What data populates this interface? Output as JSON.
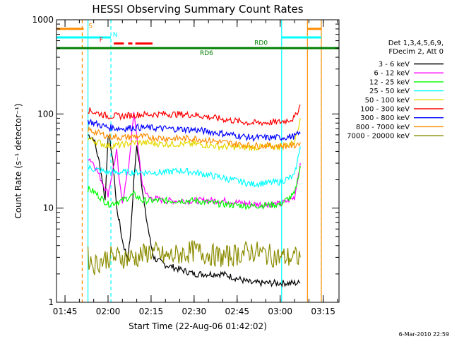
{
  "chart_data": {
    "type": "line",
    "title": "HESSI Observing Summary Count Rates",
    "xlabel": "Start Time (22-Aug-06 01:42:02)",
    "ylabel": "Count Rate (s⁻¹ detector⁻¹)",
    "y_scale": "log",
    "ylim": [
      1,
      1000
    ],
    "xlim": [
      "01:42:02",
      "03:20:30"
    ],
    "x_tick_labels": [
      "01:45",
      "02:00",
      "02:15",
      "02:30",
      "02:45",
      "03:00",
      "03:15"
    ],
    "y_tick_labels": [
      "1",
      "10",
      "100",
      "1000"
    ],
    "legend_header": [
      "Det 1,3,4,5,6,9,",
      "FDecim 2, Att 0"
    ],
    "legend_placement": "right",
    "date_stamp": "6-Mar-2010 22:59",
    "series": [
      {
        "name": "3 - 6 keV",
        "color": "#000000",
        "points": [
          [
            "01:53:00",
            60
          ],
          [
            "01:55:00",
            55
          ],
          [
            "01:57:00",
            30
          ],
          [
            "01:58:00",
            20
          ],
          [
            "01:59:00",
            12
          ],
          [
            "02:00:00",
            60
          ],
          [
            "02:01:00",
            45
          ],
          [
            "02:02:00",
            25
          ],
          [
            "02:03:00",
            10
          ],
          [
            "02:04:00",
            7
          ],
          [
            "02:05:00",
            4.5
          ],
          [
            "02:06:00",
            3.5
          ],
          [
            "02:07:00",
            3
          ],
          [
            "02:08:00",
            6
          ],
          [
            "02:09:00",
            20
          ],
          [
            "02:10:00",
            45
          ],
          [
            "02:11:00",
            30
          ],
          [
            "02:12:00",
            15
          ],
          [
            "02:13:00",
            9
          ],
          [
            "02:14:00",
            6
          ],
          [
            "02:15:00",
            4
          ],
          [
            "02:16:00",
            3
          ],
          [
            "02:17:00",
            2.8
          ],
          [
            "02:20:00",
            2.5
          ],
          [
            "02:30:00",
            2
          ],
          [
            "02:40:00",
            2
          ],
          [
            "02:50:00",
            1.6
          ],
          [
            "03:00:00",
            1.6
          ],
          [
            "03:07:00",
            1.6
          ]
        ]
      },
      {
        "name": "6 - 12 keV",
        "color": "#ff00ff",
        "points": [
          [
            "01:53:00",
            35
          ],
          [
            "01:55:00",
            30
          ],
          [
            "01:57:00",
            22
          ],
          [
            "02:00:00",
            14
          ],
          [
            "02:01:00",
            20
          ],
          [
            "02:03:00",
            40
          ],
          [
            "02:04:00",
            18
          ],
          [
            "02:05:00",
            12
          ],
          [
            "02:07:00",
            25
          ],
          [
            "02:09:00",
            100
          ],
          [
            "02:10:00",
            60
          ],
          [
            "02:11:00",
            30
          ],
          [
            "02:12:00",
            18
          ],
          [
            "02:14:00",
            13
          ],
          [
            "02:20:00",
            12
          ],
          [
            "02:30:00",
            12
          ],
          [
            "02:40:00",
            12
          ],
          [
            "02:50:00",
            11
          ],
          [
            "03:00:00",
            11
          ],
          [
            "03:05:00",
            13
          ],
          [
            "03:07:00",
            30
          ]
        ]
      },
      {
        "name": "12 - 25 keV",
        "color": "#00ff00",
        "points": [
          [
            "01:53:00",
            16
          ],
          [
            "01:55:00",
            15
          ],
          [
            "02:00:00",
            11
          ],
          [
            "02:05:00",
            12
          ],
          [
            "02:09:00",
            14
          ],
          [
            "02:12:00",
            12
          ],
          [
            "02:20:00",
            12
          ],
          [
            "02:30:00",
            12
          ],
          [
            "02:40:00",
            11
          ],
          [
            "02:50:00",
            10.5
          ],
          [
            "03:00:00",
            11
          ],
          [
            "03:05:00",
            14
          ],
          [
            "03:07:00",
            28
          ]
        ]
      },
      {
        "name": "25 - 50 keV",
        "color": "#00ffff",
        "points": [
          [
            "01:53:00",
            27
          ],
          [
            "01:55:00",
            26
          ],
          [
            "02:00:00",
            24
          ],
          [
            "02:05:00",
            24
          ],
          [
            "02:10:00",
            24
          ],
          [
            "02:20:00",
            24
          ],
          [
            "02:25:00",
            25
          ],
          [
            "02:30:00",
            24
          ],
          [
            "02:40:00",
            21
          ],
          [
            "02:50:00",
            18
          ],
          [
            "03:00:00",
            19
          ],
          [
            "03:05:00",
            22
          ],
          [
            "03:07:00",
            45
          ]
        ]
      },
      {
        "name": "50 - 100 keV",
        "color": "#e6d800",
        "points": [
          [
            "01:53:00",
            55
          ],
          [
            "01:55:00",
            52
          ],
          [
            "02:00:00",
            46
          ],
          [
            "02:05:00",
            47
          ],
          [
            "02:10:00",
            50
          ],
          [
            "02:20:00",
            48
          ],
          [
            "02:30:00",
            48
          ],
          [
            "02:40:00",
            45
          ],
          [
            "02:50:00",
            44
          ],
          [
            "03:00:00",
            45
          ],
          [
            "03:05:00",
            50
          ],
          [
            "03:07:00",
            90
          ]
        ]
      },
      {
        "name": "100 - 300 keV",
        "color": "#ff0000",
        "points": [
          [
            "01:53:00",
            110
          ],
          [
            "01:55:00",
            105
          ],
          [
            "02:00:00",
            95
          ],
          [
            "02:05:00",
            95
          ],
          [
            "02:10:00",
            98
          ],
          [
            "02:20:00",
            100
          ],
          [
            "02:30:00",
            98
          ],
          [
            "02:40:00",
            88
          ],
          [
            "02:50:00",
            80
          ],
          [
            "03:00:00",
            82
          ],
          [
            "03:05:00",
            90
          ],
          [
            "03:07:00",
            125
          ]
        ]
      },
      {
        "name": "300 - 800 keV",
        "color": "#0000ff",
        "points": [
          [
            "01:53:00",
            85
          ],
          [
            "01:55:00",
            80
          ],
          [
            "02:00:00",
            72
          ],
          [
            "02:05:00",
            70
          ],
          [
            "02:10:00",
            72
          ],
          [
            "02:20:00",
            70
          ],
          [
            "02:30:00",
            68
          ],
          [
            "02:40:00",
            62
          ],
          [
            "02:50:00",
            56
          ],
          [
            "03:00:00",
            56
          ],
          [
            "03:05:00",
            58
          ],
          [
            "03:07:00",
            62
          ]
        ]
      },
      {
        "name": "800 - 7000 keV",
        "color": "#ff8c00",
        "points": [
          [
            "01:53:00",
            68
          ],
          [
            "01:55:00",
            65
          ],
          [
            "02:00:00",
            58
          ],
          [
            "02:05:00",
            56
          ],
          [
            "02:10:00",
            58
          ],
          [
            "02:20:00",
            55
          ],
          [
            "02:30:00",
            55
          ],
          [
            "02:40:00",
            50
          ],
          [
            "02:50:00",
            46
          ],
          [
            "03:00:00",
            46
          ],
          [
            "03:05:00",
            46
          ],
          [
            "03:07:00",
            50
          ]
        ]
      },
      {
        "name": "7000 - 20000 keV",
        "color": "#8b8b00",
        "points": [
          [
            "01:53:00",
            3
          ],
          [
            "01:55:00",
            2.5
          ],
          [
            "02:00:00",
            3
          ],
          [
            "02:05:00",
            3
          ],
          [
            "02:10:00",
            3
          ],
          [
            "02:15:00",
            3.5
          ],
          [
            "02:20:00",
            3
          ],
          [
            "02:30:00",
            3.5
          ],
          [
            "02:40:00",
            3
          ],
          [
            "02:50:00",
            3.5
          ],
          [
            "03:00:00",
            3
          ],
          [
            "03:05:00",
            3
          ],
          [
            "03:07:00",
            3
          ]
        ]
      }
    ],
    "flags": {
      "S": {
        "label": "S",
        "color": "#ff8c00",
        "y": 800,
        "segments": [
          [
            "01:42:02",
            "01:51:30"
          ],
          [
            "03:09:30",
            "03:14:20"
          ]
        ]
      },
      "N": {
        "label": "N",
        "color": "#00ffff",
        "y": 650,
        "segments": [
          [
            "01:42:02",
            "02:01:00"
          ],
          [
            "03:00:30",
            "03:14:20"
          ]
        ]
      },
      "F": {
        "label": "F",
        "color": "#ff0000",
        "y": 560,
        "segments": [
          [
            "02:02:00",
            "02:05:30"
          ],
          [
            "02:07:00",
            "02:08:30"
          ],
          [
            "02:09:30",
            "02:15:30"
          ]
        ]
      },
      "RD0": {
        "label": "RD0",
        "color": "#008000",
        "y": 500,
        "segments": [
          [
            "01:42:02",
            "03:20:30"
          ]
        ]
      },
      "RD6": {
        "label": "RD6",
        "color": "#008000",
        "y": 0,
        "segments": []
      }
    },
    "vertical_markers": [
      {
        "time": "01:51:00",
        "color": "#ff8c00",
        "style": "dashed"
      },
      {
        "time": "01:53:00",
        "color": "#00ffff",
        "style": "solid"
      },
      {
        "time": "02:01:00",
        "color": "#00ffff",
        "style": "dashed"
      },
      {
        "time": "03:00:30",
        "color": "#00ffff",
        "style": "solid"
      },
      {
        "time": "03:09:30",
        "color": "#ff8c00",
        "style": "solid"
      },
      {
        "time": "03:14:20",
        "color": "#00ffff",
        "style": "dashed"
      },
      {
        "time": "03:14:20",
        "color": "#ff8c00",
        "style": "solid"
      }
    ]
  }
}
